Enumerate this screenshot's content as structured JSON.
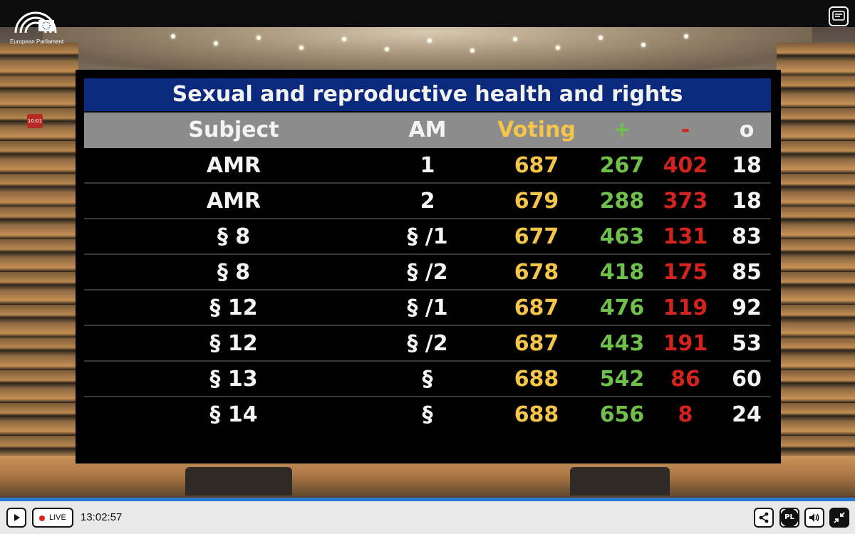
{
  "logo": {
    "text": "European Parliament"
  },
  "board": {
    "title": "Sexual and reproductive health and rights",
    "headers": {
      "subject": "Subject",
      "am": "AM",
      "voting": "Voting",
      "plus": "+",
      "minus": "-",
      "o": "o"
    },
    "rows": [
      {
        "subject": "AMR",
        "am": "1",
        "voting": "687",
        "plus": "267",
        "minus": "402",
        "o": "18"
      },
      {
        "subject": "AMR",
        "am": "2",
        "voting": "679",
        "plus": "288",
        "minus": "373",
        "o": "18"
      },
      {
        "subject": "§ 8",
        "am": "§ /1",
        "voting": "677",
        "plus": "463",
        "minus": "131",
        "o": "83"
      },
      {
        "subject": "§ 8",
        "am": "§ /2",
        "voting": "678",
        "plus": "418",
        "minus": "175",
        "o": "85"
      },
      {
        "subject": "§ 12",
        "am": "§ /1",
        "voting": "687",
        "plus": "476",
        "minus": "119",
        "o": "92"
      },
      {
        "subject": "§ 12",
        "am": "§ /2",
        "voting": "687",
        "plus": "443",
        "minus": "191",
        "o": "53"
      },
      {
        "subject": "§ 13",
        "am": "§",
        "voting": "688",
        "plus": "542",
        "minus": "86",
        "o": "60"
      },
      {
        "subject": "§ 14",
        "am": "§",
        "voting": "688",
        "plus": "656",
        "minus": "8",
        "o": "24"
      }
    ]
  },
  "player": {
    "live_label": "LIVE",
    "time": "13:02:57",
    "language": "PL",
    "icons": {
      "play": "play-icon",
      "subtitles": "subtitles-icon",
      "share": "share-icon",
      "language": "language-icon",
      "volume": "volume-icon",
      "exit_fullscreen": "exit-fullscreen-icon"
    }
  },
  "colors": {
    "title_bar": "#0b2a7d",
    "header_bar": "#8c8c8c",
    "voting": "#f5c54a",
    "plus": "#6ec04b",
    "minus": "#d2231e",
    "progress": "#2779d4"
  }
}
